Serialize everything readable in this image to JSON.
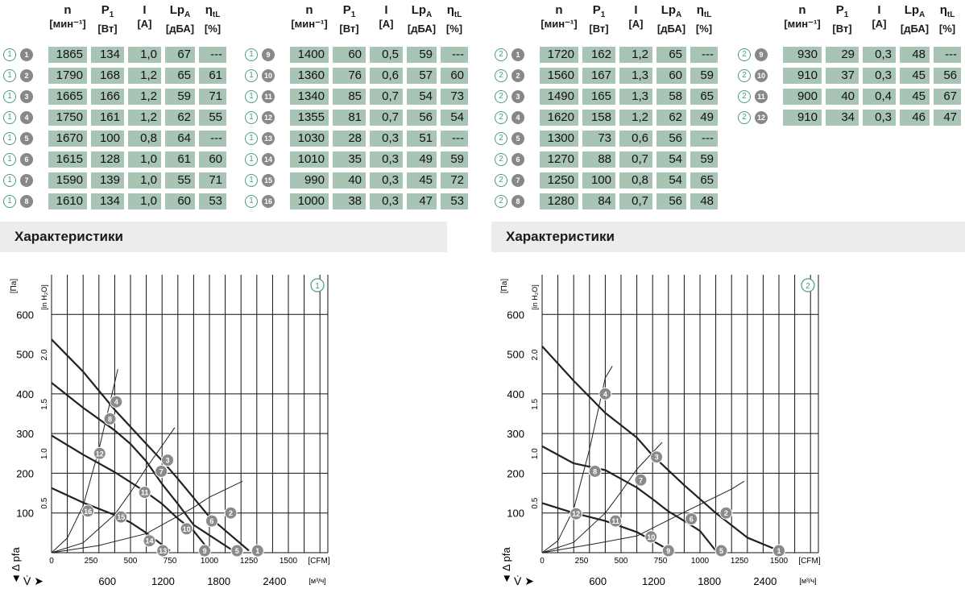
{
  "headers": [
    {
      "sym": "n",
      "sub": "",
      "unit": "[мин⁻¹]"
    },
    {
      "sym": "P",
      "sub": "1",
      "unit": "[Вт]"
    },
    {
      "sym": "I",
      "sub": "",
      "unit": "[А]"
    },
    {
      "sym": "Lp",
      "sub": "A",
      "unit": "[дБА]"
    },
    {
      "sym": "η",
      "sub": "tL",
      "unit": "[%]"
    }
  ],
  "tables": [
    {
      "circle": "1",
      "rows": [
        {
          "id": "1",
          "n": "1865",
          "p": "134",
          "i": "1,0",
          "lp": "67",
          "eta": "---"
        },
        {
          "id": "2",
          "n": "1790",
          "p": "168",
          "i": "1,2",
          "lp": "65",
          "eta": "61"
        },
        {
          "id": "3",
          "n": "1665",
          "p": "166",
          "i": "1,2",
          "lp": "59",
          "eta": "71"
        },
        {
          "id": "4",
          "n": "1750",
          "p": "161",
          "i": "1,2",
          "lp": "62",
          "eta": "55"
        },
        {
          "id": "5",
          "n": "1670",
          "p": "100",
          "i": "0,8",
          "lp": "64",
          "eta": "---"
        },
        {
          "id": "6",
          "n": "1615",
          "p": "128",
          "i": "1,0",
          "lp": "61",
          "eta": "60"
        },
        {
          "id": "7",
          "n": "1590",
          "p": "139",
          "i": "1,0",
          "lp": "55",
          "eta": "71"
        },
        {
          "id": "8",
          "n": "1610",
          "p": "134",
          "i": "1,0",
          "lp": "60",
          "eta": "53"
        }
      ]
    },
    {
      "circle": "1",
      "rows": [
        {
          "id": "9",
          "n": "1400",
          "p": "60",
          "i": "0,5",
          "lp": "59",
          "eta": "---"
        },
        {
          "id": "10",
          "n": "1360",
          "p": "76",
          "i": "0,6",
          "lp": "57",
          "eta": "60"
        },
        {
          "id": "11",
          "n": "1340",
          "p": "85",
          "i": "0,7",
          "lp": "54",
          "eta": "73"
        },
        {
          "id": "12",
          "n": "1355",
          "p": "81",
          "i": "0,7",
          "lp": "56",
          "eta": "54"
        },
        {
          "id": "13",
          "n": "1030",
          "p": "28",
          "i": "0,3",
          "lp": "51",
          "eta": "---"
        },
        {
          "id": "14",
          "n": "1010",
          "p": "35",
          "i": "0,3",
          "lp": "49",
          "eta": "59"
        },
        {
          "id": "15",
          "n": "990",
          "p": "40",
          "i": "0,3",
          "lp": "45",
          "eta": "72"
        },
        {
          "id": "16",
          "n": "1000",
          "p": "38",
          "i": "0,3",
          "lp": "47",
          "eta": "53"
        }
      ]
    },
    {
      "circle": "2",
      "rows": [
        {
          "id": "1",
          "n": "1720",
          "p": "162",
          "i": "1,2",
          "lp": "65",
          "eta": "---"
        },
        {
          "id": "2",
          "n": "1560",
          "p": "167",
          "i": "1,3",
          "lp": "60",
          "eta": "59"
        },
        {
          "id": "3",
          "n": "1490",
          "p": "165",
          "i": "1,3",
          "lp": "58",
          "eta": "65"
        },
        {
          "id": "4",
          "n": "1620",
          "p": "158",
          "i": "1,2",
          "lp": "62",
          "eta": "49"
        },
        {
          "id": "5",
          "n": "1300",
          "p": "73",
          "i": "0,6",
          "lp": "56",
          "eta": "---"
        },
        {
          "id": "6",
          "n": "1270",
          "p": "88",
          "i": "0,7",
          "lp": "54",
          "eta": "59"
        },
        {
          "id": "7",
          "n": "1250",
          "p": "100",
          "i": "0,8",
          "lp": "54",
          "eta": "65"
        },
        {
          "id": "8",
          "n": "1280",
          "p": "84",
          "i": "0,7",
          "lp": "56",
          "eta": "48"
        }
      ]
    },
    {
      "circle": "2",
      "rows": [
        {
          "id": "9",
          "n": "930",
          "p": "29",
          "i": "0,3",
          "lp": "48",
          "eta": "---"
        },
        {
          "id": "10",
          "n": "910",
          "p": "37",
          "i": "0,3",
          "lp": "45",
          "eta": "56"
        },
        {
          "id": "11",
          "n": "900",
          "p": "40",
          "i": "0,4",
          "lp": "45",
          "eta": "67"
        },
        {
          "id": "12",
          "n": "910",
          "p": "34",
          "i": "0,3",
          "lp": "46",
          "eta": "47"
        }
      ]
    }
  ],
  "section_titles": [
    "Характеристики",
    "Характеристики"
  ],
  "colors": {
    "cell": "#a8c4b5",
    "ring": "#4a9d7a",
    "marker": "#8a8a8a",
    "grid": "#111111"
  },
  "chart_data": [
    {
      "type": "line",
      "badge": "1",
      "y_unit": "[Па]",
      "y2_unit": "[in H₂O]",
      "x_unit": "[CFM]",
      "x2_unit": "[м³/ч]",
      "y_ticks": [
        "100",
        "200",
        "300",
        "400",
        "500",
        "600"
      ],
      "y2_ticks": [
        "0.5",
        "1.0",
        "1.5",
        "2.0"
      ],
      "x_ticks": [
        "0",
        "250",
        "500",
        "750",
        "1000",
        "1250",
        "1500"
      ],
      "x2_ticks": [
        "600",
        "1200",
        "1800",
        "2400"
      ],
      "y_label": "Δ pfa",
      "x_label": "V̇",
      "xlim": [
        0,
        1750
      ],
      "ylim": [
        0,
        700
      ],
      "curves": [
        [
          [
            0,
            537
          ],
          [
            200,
            456
          ],
          [
            400,
            360
          ],
          [
            600,
            274
          ],
          [
            700,
            232
          ],
          [
            800,
            186
          ],
          [
            1000,
            90
          ],
          [
            1100,
            56
          ],
          [
            1250,
            5
          ]
        ],
        [
          [
            0,
            428
          ],
          [
            200,
            365
          ],
          [
            400,
            308
          ],
          [
            500,
            274
          ],
          [
            600,
            230
          ],
          [
            700,
            173
          ],
          [
            800,
            123
          ],
          [
            900,
            70
          ],
          [
            1150,
            5
          ]
        ],
        [
          [
            0,
            295
          ],
          [
            200,
            247
          ],
          [
            400,
            203
          ],
          [
            600,
            152
          ],
          [
            700,
            123
          ],
          [
            800,
            86
          ],
          [
            900,
            55
          ],
          [
            1000,
            5
          ]
        ],
        [
          [
            0,
            163
          ],
          [
            200,
            126
          ],
          [
            400,
            95
          ],
          [
            500,
            76
          ],
          [
            600,
            50
          ],
          [
            750,
            5
          ]
        ]
      ],
      "system_lines": [
        [
          [
            0,
            0
          ],
          [
            100,
            37
          ],
          [
            200,
            118
          ],
          [
            300,
            260
          ],
          [
            420,
            462
          ]
        ],
        [
          [
            0,
            0
          ],
          [
            200,
            25
          ],
          [
            400,
            96
          ],
          [
            500,
            152
          ],
          [
            600,
            213
          ],
          [
            780,
            315
          ]
        ],
        [
          [
            0,
            0
          ],
          [
            300,
            18
          ],
          [
            600,
            48
          ],
          [
            900,
            114
          ],
          [
            1000,
            140
          ],
          [
            1210,
            180
          ]
        ]
      ],
      "markers": [
        {
          "id": "1",
          "x": 1305,
          "y": 5
        },
        {
          "id": "2",
          "x": 1135,
          "y": 100
        },
        {
          "id": "3",
          "x": 735,
          "y": 233
        },
        {
          "id": "4",
          "x": 410,
          "y": 380
        },
        {
          "id": "5",
          "x": 1175,
          "y": 5
        },
        {
          "id": "6",
          "x": 1015,
          "y": 80
        },
        {
          "id": "7",
          "x": 695,
          "y": 205
        },
        {
          "id": "8",
          "x": 370,
          "y": 337
        },
        {
          "id": "9",
          "x": 970,
          "y": 5
        },
        {
          "id": "10",
          "x": 855,
          "y": 60
        },
        {
          "id": "11",
          "x": 590,
          "y": 152
        },
        {
          "id": "12",
          "x": 305,
          "y": 250
        },
        {
          "id": "13",
          "x": 705,
          "y": 5
        },
        {
          "id": "14",
          "x": 620,
          "y": 30
        },
        {
          "id": "15",
          "x": 440,
          "y": 90
        },
        {
          "id": "16",
          "x": 230,
          "y": 105
        }
      ]
    },
    {
      "type": "line",
      "badge": "2",
      "y_unit": "[Па]",
      "y2_unit": "[in H₂O]",
      "x_unit": "[CFM]",
      "x2_unit": "[м³/ч]",
      "y_ticks": [
        "100",
        "200",
        "300",
        "400",
        "500",
        "600"
      ],
      "y2_ticks": [
        "0.5",
        "1.0",
        "1.5",
        "2.0"
      ],
      "x_ticks": [
        "0",
        "250",
        "500",
        "750",
        "1000",
        "1250",
        "1500"
      ],
      "x2_ticks": [
        "600",
        "1200",
        "1800",
        "2400"
      ],
      "y_label": "Δ pfa",
      "x_label": "V̇",
      "xlim": [
        0,
        1750
      ],
      "ylim": [
        0,
        700
      ],
      "curves": [
        [
          [
            0,
            520
          ],
          [
            200,
            433
          ],
          [
            400,
            352
          ],
          [
            600,
            290
          ],
          [
            700,
            245
          ],
          [
            900,
            170
          ],
          [
            1100,
            100
          ],
          [
            1300,
            38
          ],
          [
            1500,
            5
          ]
        ],
        [
          [
            0,
            268
          ],
          [
            200,
            225
          ],
          [
            400,
            208
          ],
          [
            600,
            164
          ],
          [
            700,
            135
          ],
          [
            800,
            104
          ],
          [
            900,
            80
          ],
          [
            1000,
            55
          ],
          [
            1100,
            5
          ]
        ],
        [
          [
            0,
            125
          ],
          [
            200,
            100
          ],
          [
            400,
            80
          ],
          [
            600,
            52
          ],
          [
            700,
            30
          ],
          [
            810,
            5
          ]
        ]
      ],
      "system_lines": [
        [
          [
            0,
            0
          ],
          [
            100,
            30
          ],
          [
            200,
            110
          ],
          [
            300,
            260
          ],
          [
            400,
            440
          ],
          [
            445,
            470
          ]
        ],
        [
          [
            0,
            0
          ],
          [
            200,
            26
          ],
          [
            400,
            100
          ],
          [
            500,
            153
          ],
          [
            600,
            210
          ],
          [
            760,
            278
          ]
        ],
        [
          [
            0,
            0
          ],
          [
            300,
            20
          ],
          [
            600,
            42
          ],
          [
            900,
            102
          ],
          [
            1200,
            160
          ],
          [
            1280,
            180
          ]
        ]
      ],
      "markers": [
        {
          "id": "1",
          "x": 1500,
          "y": 5
        },
        {
          "id": "2",
          "x": 1165,
          "y": 100
        },
        {
          "id": "3",
          "x": 725,
          "y": 241
        },
        {
          "id": "4",
          "x": 400,
          "y": 400
        },
        {
          "id": "5",
          "x": 1135,
          "y": 5
        },
        {
          "id": "6",
          "x": 945,
          "y": 85
        },
        {
          "id": "7",
          "x": 625,
          "y": 183
        },
        {
          "id": "8",
          "x": 335,
          "y": 205
        },
        {
          "id": "9",
          "x": 800,
          "y": 5
        },
        {
          "id": "10",
          "x": 690,
          "y": 40
        },
        {
          "id": "11",
          "x": 465,
          "y": 80
        },
        {
          "id": "12",
          "x": 215,
          "y": 98
        }
      ]
    }
  ]
}
